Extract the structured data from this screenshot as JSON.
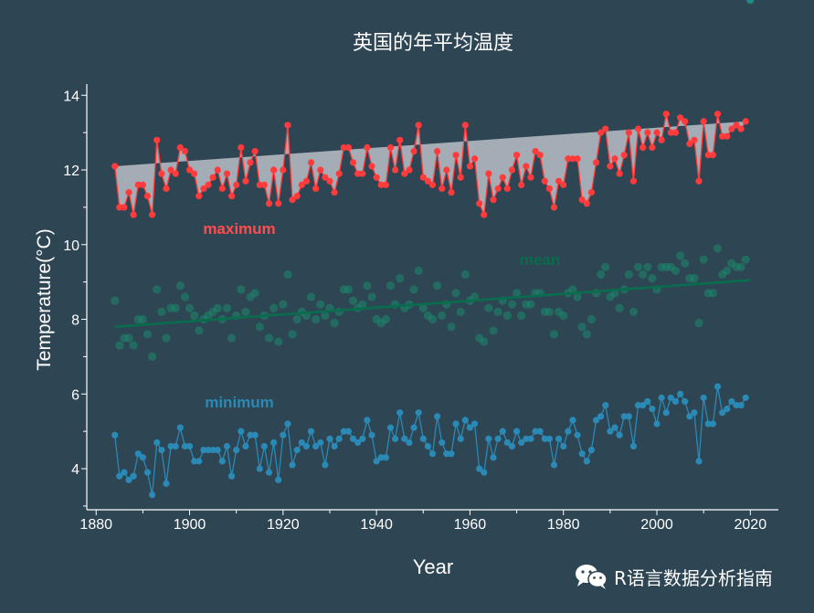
{
  "chart_data": {
    "type": "line",
    "title": "英国的年平均温度",
    "xlabel": "Year",
    "ylabel": "Temperature(°C)",
    "xlim": [
      1878,
      2026
    ],
    "ylim": [
      2.9,
      14.3
    ],
    "x_ticks": [
      "1880",
      "1900",
      "1920",
      "1940",
      "1960",
      "1980",
      "2000",
      "2020"
    ],
    "y_ticks": [
      "4",
      "6",
      "8",
      "10",
      "12",
      "14"
    ],
    "grid": false,
    "years": [
      1884,
      1885,
      1886,
      1887,
      1888,
      1889,
      1890,
      1891,
      1892,
      1893,
      1894,
      1895,
      1896,
      1897,
      1898,
      1899,
      1900,
      1901,
      1902,
      1903,
      1904,
      1905,
      1906,
      1907,
      1908,
      1909,
      1910,
      1911,
      1912,
      1913,
      1914,
      1915,
      1916,
      1917,
      1918,
      1919,
      1920,
      1921,
      1922,
      1923,
      1924,
      1925,
      1926,
      1927,
      1928,
      1929,
      1930,
      1931,
      1932,
      1933,
      1934,
      1935,
      1936,
      1937,
      1938,
      1939,
      1940,
      1941,
      1942,
      1943,
      1944,
      1945,
      1946,
      1947,
      1948,
      1949,
      1950,
      1951,
      1952,
      1953,
      1954,
      1955,
      1956,
      1957,
      1958,
      1959,
      1960,
      1961,
      1962,
      1963,
      1964,
      1965,
      1966,
      1967,
      1968,
      1969,
      1970,
      1971,
      1972,
      1973,
      1974,
      1975,
      1976,
      1977,
      1978,
      1979,
      1980,
      1981,
      1982,
      1983,
      1984,
      1985,
      1986,
      1987,
      1988,
      1989,
      1990,
      1991,
      1992,
      1993,
      1994,
      1995,
      1996,
      1997,
      1998,
      1999,
      2000,
      2001,
      2002,
      2003,
      2004,
      2005,
      2006,
      2007,
      2008,
      2009,
      2010,
      2011,
      2012,
      2013,
      2014,
      2015,
      2016,
      2017,
      2018,
      2019,
      2020
    ],
    "series": [
      {
        "name": "maximum",
        "color": "#ff3b3b",
        "values": [
          12.1,
          11.0,
          11.0,
          11.4,
          10.8,
          11.6,
          11.6,
          11.3,
          10.8,
          12.8,
          11.9,
          11.5,
          12.0,
          11.9,
          12.6,
          12.5,
          12.0,
          11.9,
          11.3,
          11.5,
          11.6,
          11.8,
          12.0,
          11.5,
          11.9,
          11.3,
          11.6,
          12.6,
          11.7,
          12.2,
          12.5,
          11.6,
          11.6,
          11.1,
          12.0,
          11.1,
          12.0,
          13.2,
          11.2,
          11.3,
          11.6,
          11.7,
          12.2,
          11.5,
          12.0,
          11.8,
          11.7,
          11.4,
          11.9,
          12.6,
          12.6,
          12.2,
          11.9,
          11.9,
          12.6,
          12.1,
          11.8,
          11.6,
          11.6,
          12.6,
          12.0,
          12.8,
          11.9,
          12.0,
          12.5,
          13.2,
          11.8,
          11.7,
          11.6,
          12.5,
          11.5,
          12.0,
          11.4,
          12.4,
          11.8,
          13.2,
          12.1,
          12.3,
          11.1,
          10.8,
          11.9,
          11.2,
          11.5,
          11.8,
          11.5,
          12.0,
          12.4,
          11.6,
          12.1,
          11.8,
          12.5,
          12.4,
          11.7,
          11.5,
          11.0,
          11.7,
          11.6,
          12.3,
          12.3,
          12.3,
          11.2,
          11.1,
          11.4,
          12.2,
          13.0,
          13.1,
          12.1,
          12.3,
          11.9,
          12.4,
          13.0,
          11.7,
          13.1,
          12.6,
          13.0,
          12.6,
          13.0,
          12.8,
          13.5,
          13.0,
          13.0,
          13.4,
          13.3,
          12.7,
          12.8,
          11.7,
          13.3,
          12.4,
          12.4,
          13.5,
          12.9,
          12.9,
          13.1,
          13.2,
          13.1,
          13.3
        ]
      },
      {
        "name": "mean",
        "color": "#1b8a6b",
        "values": [
          8.5,
          7.3,
          7.5,
          7.5,
          7.3,
          8.0,
          8.0,
          7.6,
          7.0,
          8.8,
          8.2,
          7.5,
          8.3,
          8.3,
          8.9,
          8.6,
          8.3,
          8.1,
          7.7,
          8.0,
          8.1,
          8.2,
          8.3,
          8.0,
          8.3,
          7.5,
          8.1,
          8.8,
          8.2,
          8.6,
          8.7,
          7.8,
          8.1,
          7.5,
          8.3,
          7.4,
          8.4,
          9.2,
          7.6,
          8.0,
          8.2,
          8.1,
          8.6,
          8.0,
          8.4,
          8.1,
          8.3,
          7.9,
          8.2,
          8.8,
          8.8,
          8.5,
          8.3,
          8.4,
          8.9,
          8.6,
          8.0,
          7.9,
          8.0,
          8.9,
          8.4,
          9.1,
          8.3,
          8.4,
          8.8,
          9.3,
          8.3,
          8.1,
          8.0,
          8.9,
          8.1,
          8.4,
          7.8,
          8.7,
          8.2,
          9.2,
          8.5,
          8.6,
          7.5,
          7.4,
          8.3,
          7.7,
          8.2,
          8.5,
          8.1,
          8.4,
          8.7,
          8.1,
          8.4,
          8.4,
          8.7,
          8.7,
          8.2,
          8.2,
          7.6,
          8.2,
          8.1,
          8.7,
          8.8,
          8.6,
          7.8,
          7.6,
          8.0,
          8.7,
          9.2,
          9.4,
          8.6,
          8.7,
          8.3,
          8.8,
          9.2,
          8.2,
          9.4,
          9.2,
          9.4,
          9.1,
          8.8,
          9.4,
          9.4,
          9.4,
          9.3,
          9.7,
          9.5,
          9.1,
          9.1,
          7.9,
          9.6,
          8.7,
          8.7,
          9.9,
          9.2,
          9.3,
          9.5,
          9.4,
          9.4,
          9.6
        ]
      },
      {
        "name": "minimum",
        "color": "#2a8ab5",
        "values": [
          4.9,
          3.8,
          3.9,
          3.7,
          3.8,
          4.4,
          4.3,
          3.9,
          3.3,
          4.7,
          4.5,
          3.6,
          4.6,
          4.6,
          5.1,
          4.6,
          4.6,
          4.2,
          4.2,
          4.5,
          4.5,
          4.5,
          4.5,
          4.2,
          4.6,
          3.8,
          4.5,
          5.0,
          4.6,
          4.9,
          4.9,
          4.0,
          4.6,
          3.9,
          4.7,
          3.7,
          4.9,
          5.2,
          4.1,
          4.5,
          4.7,
          4.6,
          5.0,
          4.6,
          4.7,
          4.1,
          4.8,
          4.6,
          4.8,
          5.0,
          5.0,
          4.8,
          4.7,
          4.8,
          5.3,
          4.9,
          4.2,
          4.3,
          4.3,
          5.1,
          4.8,
          5.5,
          4.8,
          4.7,
          5.1,
          5.5,
          4.8,
          4.6,
          4.4,
          5.4,
          4.7,
          4.4,
          4.4,
          5.2,
          4.8,
          5.3,
          5.1,
          5.2,
          4.0,
          3.9,
          4.8,
          4.3,
          4.8,
          5.0,
          4.7,
          4.6,
          5.0,
          4.7,
          4.8,
          4.8,
          5.0,
          5.0,
          4.8,
          4.8,
          4.1,
          4.8,
          4.6,
          5.0,
          5.3,
          4.9,
          4.4,
          4.2,
          4.5,
          5.3,
          5.4,
          5.7,
          5.0,
          5.1,
          4.9,
          5.4,
          5.4,
          4.6,
          5.7,
          5.7,
          5.8,
          5.6,
          5.2,
          5.9,
          5.5,
          5.9,
          5.8,
          6.0,
          5.8,
          5.4,
          5.5,
          4.2,
          5.9,
          5.2,
          5.2,
          6.2,
          5.5,
          5.6,
          5.8,
          5.7,
          5.7,
          5.9
        ]
      }
    ],
    "trend": {
      "series": "mean",
      "x": [
        1884,
        2020
      ],
      "y": [
        7.8,
        9.05
      ]
    },
    "colors": {
      "background": "#2e4554",
      "band_fill": "#a4adb5",
      "trend_line": "#0a6b4d"
    }
  },
  "watermark": {
    "icon": "wechat-icon",
    "text": "R语言数据分析指南"
  }
}
